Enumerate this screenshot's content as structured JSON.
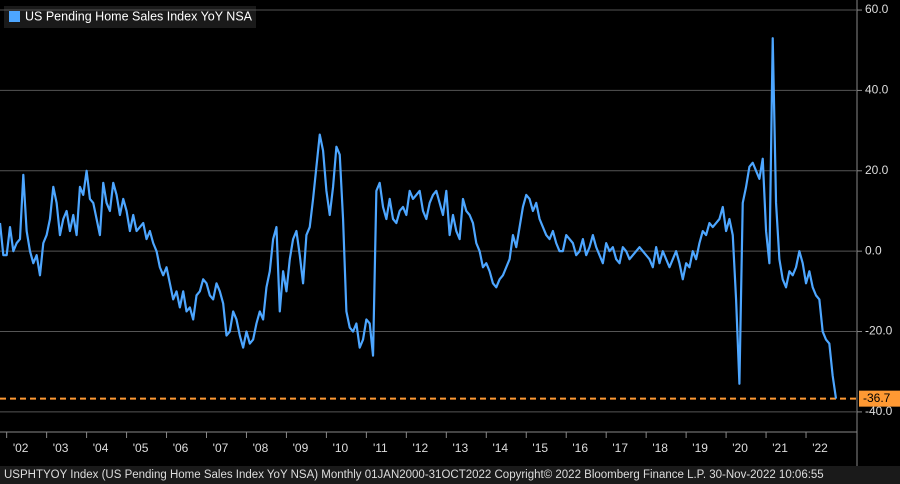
{
  "chart_data": {
    "type": "line",
    "legend": "top-left",
    "grid": true,
    "footer": "USPHTYOY Index (US Pending Home Sales Index YoY NSA)  Monthly 01JAN2000-31OCT2022  Copyright© 2022 Bloomberg Finance L.P.  30-Nov-2022 10:06:55",
    "ylim": [
      -45,
      62.5
    ],
    "yticks": [
      {
        "value": -40,
        "label": "-40.0"
      },
      {
        "value": -20,
        "label": "-20.0"
      },
      {
        "value": 0,
        "label": "0.0"
      },
      {
        "value": 20,
        "label": "20.0"
      },
      {
        "value": 40,
        "label": "40.0"
      },
      {
        "value": 60,
        "label": "60.0"
      }
    ],
    "reference_line": {
      "value": -36.7,
      "color": "#ff9933"
    },
    "categories": [
      null,
      null,
      "'02",
      null,
      null,
      null,
      null,
      null,
      null,
      null,
      null,
      null,
      null,
      null,
      "'03",
      null,
      null,
      null,
      null,
      null,
      null,
      null,
      null,
      null,
      null,
      null,
      "'04",
      null,
      null,
      null,
      null,
      null,
      null,
      null,
      null,
      null,
      null,
      null,
      "'05",
      null,
      null,
      null,
      null,
      null,
      null,
      null,
      null,
      null,
      null,
      null,
      "'06",
      null,
      null,
      null,
      null,
      null,
      null,
      null,
      null,
      null,
      null,
      null,
      "'07",
      null,
      null,
      null,
      null,
      null,
      null,
      null,
      null,
      null,
      null,
      null,
      "'08",
      null,
      null,
      null,
      null,
      null,
      null,
      null,
      null,
      null,
      null,
      null,
      "'09",
      null,
      null,
      null,
      null,
      null,
      null,
      null,
      null,
      null,
      null,
      null,
      "'10",
      null,
      null,
      null,
      null,
      null,
      null,
      null,
      null,
      null,
      null,
      null,
      "'11",
      null,
      null,
      null,
      null,
      null,
      null,
      null,
      null,
      null,
      null,
      null,
      "'12",
      null,
      null,
      null,
      null,
      null,
      null,
      null,
      null,
      null,
      null,
      null,
      "'13",
      null,
      null,
      null,
      null,
      null,
      null,
      null,
      null,
      null,
      null,
      null,
      "'14",
      null,
      null,
      null,
      null,
      null,
      null,
      null,
      null,
      null,
      null,
      null,
      "'15",
      null,
      null,
      null,
      null,
      null,
      null,
      null,
      null,
      null,
      null,
      null,
      "'16",
      null,
      null,
      null,
      null,
      null,
      null,
      null,
      null,
      null,
      null,
      null,
      "'17",
      null,
      null,
      null,
      null,
      null,
      null,
      null,
      null,
      null,
      null,
      null,
      "'18",
      null,
      null,
      null,
      null,
      null,
      null,
      null,
      null,
      null,
      null,
      null,
      "'19",
      null,
      null,
      null,
      null,
      null,
      null,
      null,
      null,
      null,
      null,
      null,
      "'20",
      null,
      null,
      null,
      null,
      null,
      null,
      null,
      null,
      null,
      null,
      null,
      "'21",
      null,
      null,
      null,
      null,
      null,
      null,
      null,
      null,
      null,
      null,
      null,
      "'22",
      null,
      null,
      null,
      null,
      null,
      null,
      null,
      null,
      null
    ],
    "series": [
      {
        "name": "US Pending Home Sales Index YoY NSA",
        "color": "#4da6ff",
        "values": [
          7,
          -1,
          -1,
          6,
          0,
          2,
          3,
          19,
          5,
          0,
          -3,
          -1,
          -6,
          2,
          4,
          8,
          16,
          12,
          4,
          8,
          10,
          5,
          9,
          4,
          16,
          14,
          20,
          13,
          12,
          8,
          4,
          17,
          12,
          10,
          17,
          14,
          9,
          13,
          10,
          5,
          9,
          5,
          6,
          7,
          3,
          5,
          2,
          0,
          -4,
          -6,
          -4,
          -8,
          -12,
          -10,
          -14,
          -10,
          -15,
          -14,
          -17,
          -11,
          -10,
          -7,
          -8,
          -11,
          -12,
          -8,
          -10,
          -13,
          -21,
          -20,
          -15,
          -17,
          -21,
          -24,
          -20,
          -23,
          -22,
          -18,
          -15,
          -17,
          -9,
          -5,
          3,
          6,
          -15,
          -5,
          -10,
          -2,
          3,
          5,
          -1,
          -8,
          4,
          6,
          13,
          21,
          29,
          25,
          15,
          9,
          16,
          26,
          24,
          8,
          -15,
          -19,
          -20,
          -18,
          -24,
          -22,
          -17,
          -18,
          -26,
          15,
          17,
          11,
          8,
          13,
          8,
          7,
          10,
          11,
          9,
          15,
          13,
          14,
          15,
          10,
          8,
          12,
          14,
          15,
          12,
          9,
          15,
          4,
          9,
          5,
          3,
          13,
          10,
          9,
          7,
          2,
          0,
          -4,
          -3,
          -5,
          -8,
          -9,
          -7,
          -6,
          -4,
          -2,
          4,
          1,
          6,
          11,
          14,
          13,
          10,
          12,
          8,
          6,
          4,
          3,
          5,
          2,
          0,
          0,
          4,
          3,
          2,
          -1,
          0,
          3,
          -1,
          1,
          4,
          1,
          -1,
          -3,
          2,
          0,
          1,
          -2,
          -3,
          1,
          0,
          -2,
          -1,
          0,
          1,
          0,
          -1,
          -2,
          -4,
          1,
          -3,
          0,
          -2,
          -4,
          -2,
          0,
          -3,
          -7,
          -3,
          -4,
          0,
          -2,
          2,
          5,
          4,
          7,
          6,
          7,
          8,
          11,
          5,
          8,
          4,
          -12,
          -33,
          12,
          16,
          21,
          22,
          20,
          18,
          23,
          5,
          -3,
          53,
          12,
          -2,
          -7,
          -9,
          -5,
          -6,
          -4,
          0,
          -3,
          -8,
          -5,
          -9,
          -11,
          -12,
          -20,
          -22,
          -23,
          -31,
          -36.7
        ]
      }
    ]
  }
}
